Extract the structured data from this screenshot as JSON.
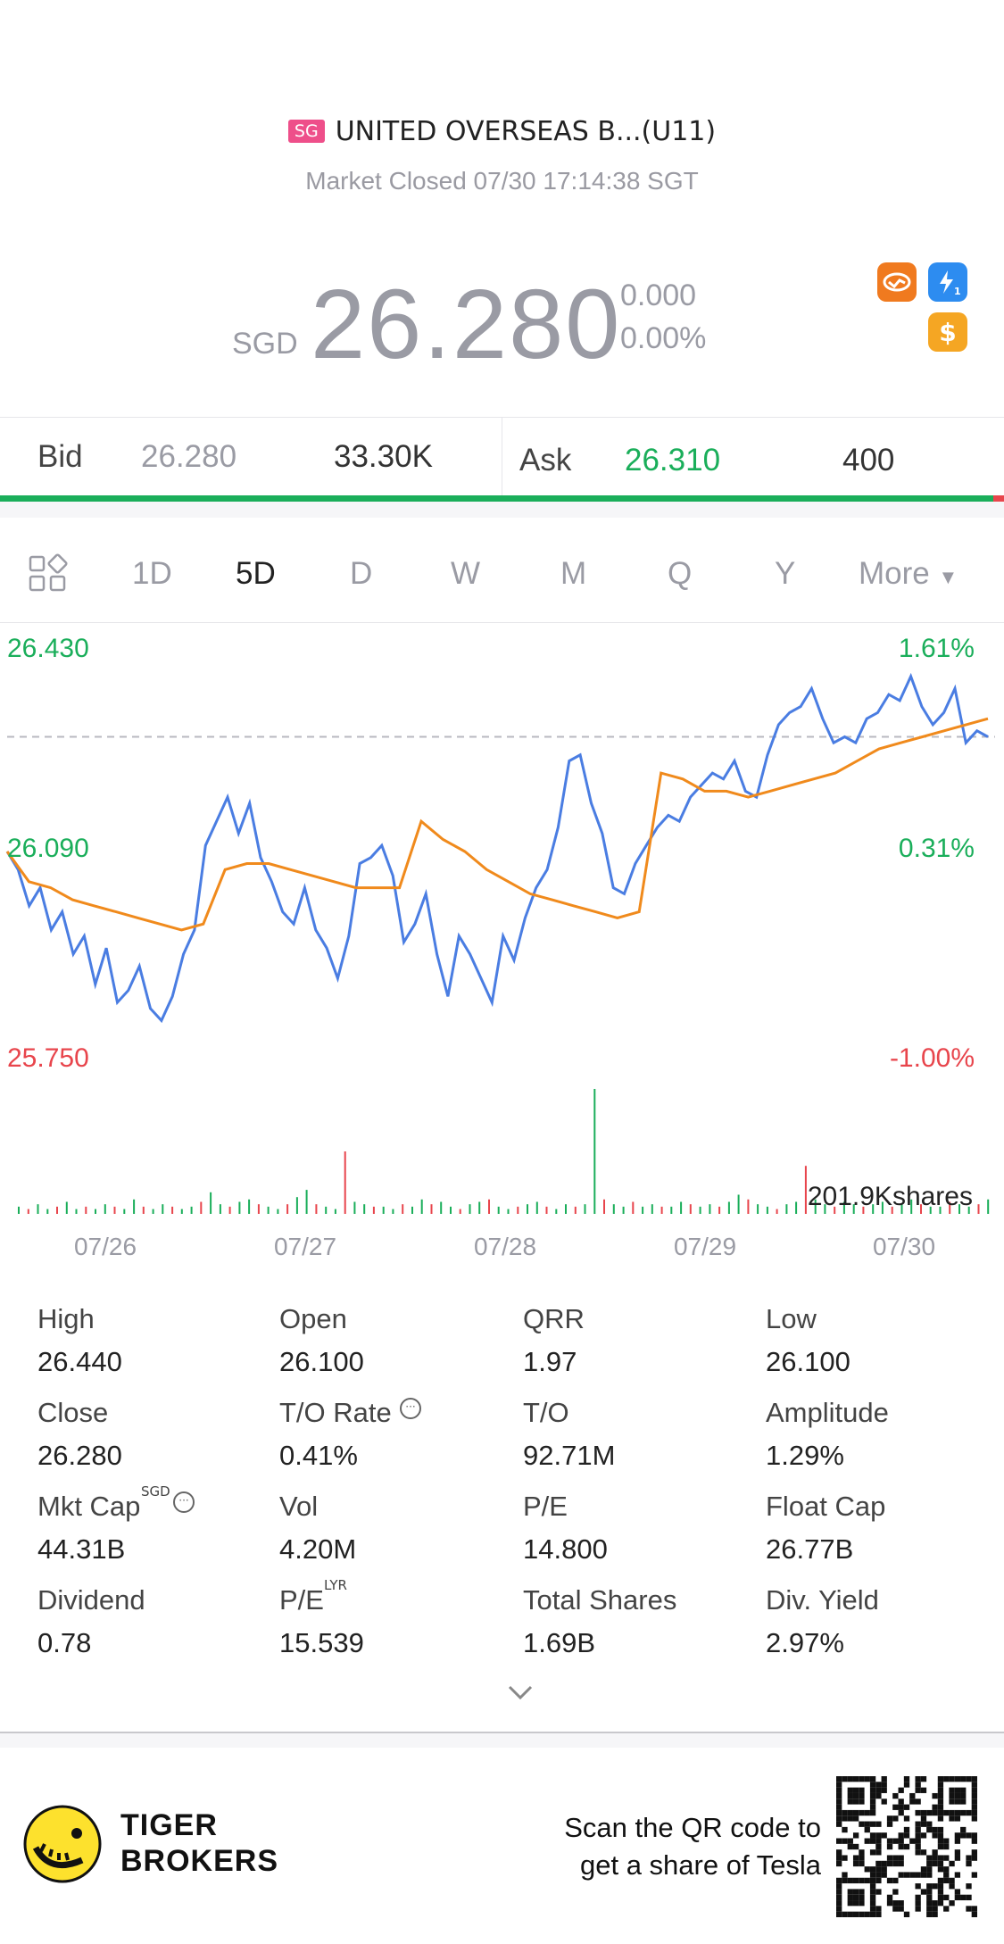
{
  "header": {
    "market_badge": "SG",
    "title": "UNITED OVERSEAS B...(U11)",
    "status": "Market Closed 07/30 17:14:38 SGT"
  },
  "quote": {
    "currency": "SGD",
    "price": "26.280",
    "change": "0.000",
    "change_pct": "0.00%",
    "icons": [
      "handshake-icon",
      "lightning-level1-icon",
      "dollar-icon"
    ]
  },
  "orderbook": {
    "bid_label": "Bid",
    "bid_price": "26.280",
    "bid_size": "33.30K",
    "ask_label": "Ask",
    "ask_price": "26.310",
    "ask_size": "400"
  },
  "tabs": {
    "layout_icon": "grid-layout-icon",
    "items": [
      "1D",
      "5D",
      "D",
      "W",
      "M",
      "Q",
      "Y"
    ],
    "active": "5D",
    "more": "More"
  },
  "chart_data": {
    "type": "line",
    "title": "",
    "ylim": [
      25.75,
      26.43
    ],
    "price_labels": [
      "26.430",
      "26.090",
      "25.750"
    ],
    "pct_labels": [
      "1.61%",
      "0.31%",
      "-1.00%"
    ],
    "prev_close": 26.28,
    "x_labels": [
      "07/26",
      "07/27",
      "07/28",
      "07/29",
      "07/30"
    ],
    "volume_label": "201.9Kshares",
    "series": [
      {
        "values": [
          26.09,
          26.06,
          26.0,
          26.03,
          25.96,
          25.99,
          25.92,
          25.95,
          25.87,
          25.93,
          25.84,
          25.86,
          25.9,
          25.83,
          25.81,
          25.85,
          25.92,
          25.96,
          26.1,
          26.14,
          26.18,
          26.12,
          26.17,
          26.08,
          26.04,
          25.99,
          25.97,
          26.03,
          25.96,
          25.93,
          25.88,
          25.95,
          26.07,
          26.08,
          26.1,
          26.05,
          25.94,
          25.97,
          26.02,
          25.92,
          25.85,
          25.95,
          25.92,
          25.88,
          25.84,
          25.95,
          25.91,
          25.98,
          26.03,
          26.06,
          26.13,
          26.24,
          26.25,
          26.17,
          26.12,
          26.03,
          26.02,
          26.07,
          26.1,
          26.13,
          26.15,
          26.14,
          26.18,
          26.2,
          26.22,
          26.21,
          26.24,
          26.19,
          26.18,
          26.25,
          26.3,
          26.32,
          26.33,
          26.36,
          26.31,
          26.27,
          26.28,
          26.27,
          26.31,
          26.32,
          26.35,
          26.34,
          26.38,
          26.33,
          26.3,
          26.32,
          26.36,
          26.27,
          26.29,
          26.28
        ]
      },
      {
        "values": [
          26.09,
          26.04,
          26.03,
          26.01,
          26.0,
          25.99,
          25.98,
          25.97,
          25.96,
          25.97,
          26.06,
          26.07,
          26.07,
          26.06,
          26.05,
          26.04,
          26.03,
          26.03,
          26.03,
          26.14,
          26.11,
          26.09,
          26.06,
          26.04,
          26.02,
          26.01,
          26.0,
          25.99,
          25.98,
          25.99,
          26.22,
          26.21,
          26.19,
          26.19,
          26.18,
          26.19,
          26.2,
          26.21,
          26.22,
          26.24,
          26.26,
          26.27,
          26.28,
          26.29,
          26.3,
          26.31
        ]
      }
    ],
    "volume": [
      3,
      2,
      4,
      2,
      3,
      5,
      2,
      3,
      2,
      4,
      3,
      2,
      6,
      3,
      2,
      4,
      3,
      2,
      3,
      5,
      9,
      4,
      3,
      5,
      6,
      4,
      3,
      2,
      4,
      7,
      10,
      4,
      3,
      2,
      26,
      5,
      4,
      3,
      3,
      2,
      4,
      3,
      6,
      4,
      5,
      3,
      2,
      4,
      5,
      6,
      3,
      2,
      3,
      4,
      5,
      3,
      2,
      4,
      3,
      4,
      52,
      6,
      4,
      3,
      5,
      3,
      4,
      3,
      3,
      5,
      4,
      3,
      4,
      3,
      5,
      8,
      6,
      4,
      3,
      2,
      4,
      5,
      20,
      6,
      4,
      3,
      5,
      4,
      3,
      4,
      5,
      3,
      4,
      6,
      4,
      3,
      3,
      5,
      4,
      3,
      4,
      6
    ]
  },
  "stats": [
    {
      "label": "High",
      "value": "26.440"
    },
    {
      "label": "Open",
      "value": "26.100"
    },
    {
      "label": "QRR",
      "value": "1.97"
    },
    {
      "label": "Low",
      "value": "26.100"
    },
    {
      "label": "Close",
      "value": "26.280"
    },
    {
      "label": "T/O Rate",
      "value": "0.41%"
    },
    {
      "label": "T/O",
      "value": "92.71M"
    },
    {
      "label": "Amplitude",
      "value": "1.29%"
    },
    {
      "label": "Mkt Cap",
      "value": "44.31B",
      "sup": "SGD"
    },
    {
      "label": "Vol",
      "value": "4.20M"
    },
    {
      "label": "P/E",
      "value": "14.800"
    },
    {
      "label": "Float Cap",
      "value": "26.77B"
    },
    {
      "label": "Dividend",
      "value": "0.78"
    },
    {
      "label": "P/E",
      "value": "15.539",
      "sup": "LYR"
    },
    {
      "label": "Total Shares",
      "value": "1.69B"
    },
    {
      "label": "Div. Yield",
      "value": "2.97%"
    }
  ],
  "footer": {
    "brand_line1": "TIGER",
    "brand_line2": "BROKERS",
    "promo_line1": "Scan the QR code to",
    "promo_line2": "get a share of Tesla",
    "qr_icon": "qr-code-icon"
  },
  "colors": {
    "up": "#1aae5a",
    "down": "#e8454c",
    "price_line": "#4a7de2",
    "avg_line": "#f08a1c",
    "muted": "#9a9ba4"
  }
}
